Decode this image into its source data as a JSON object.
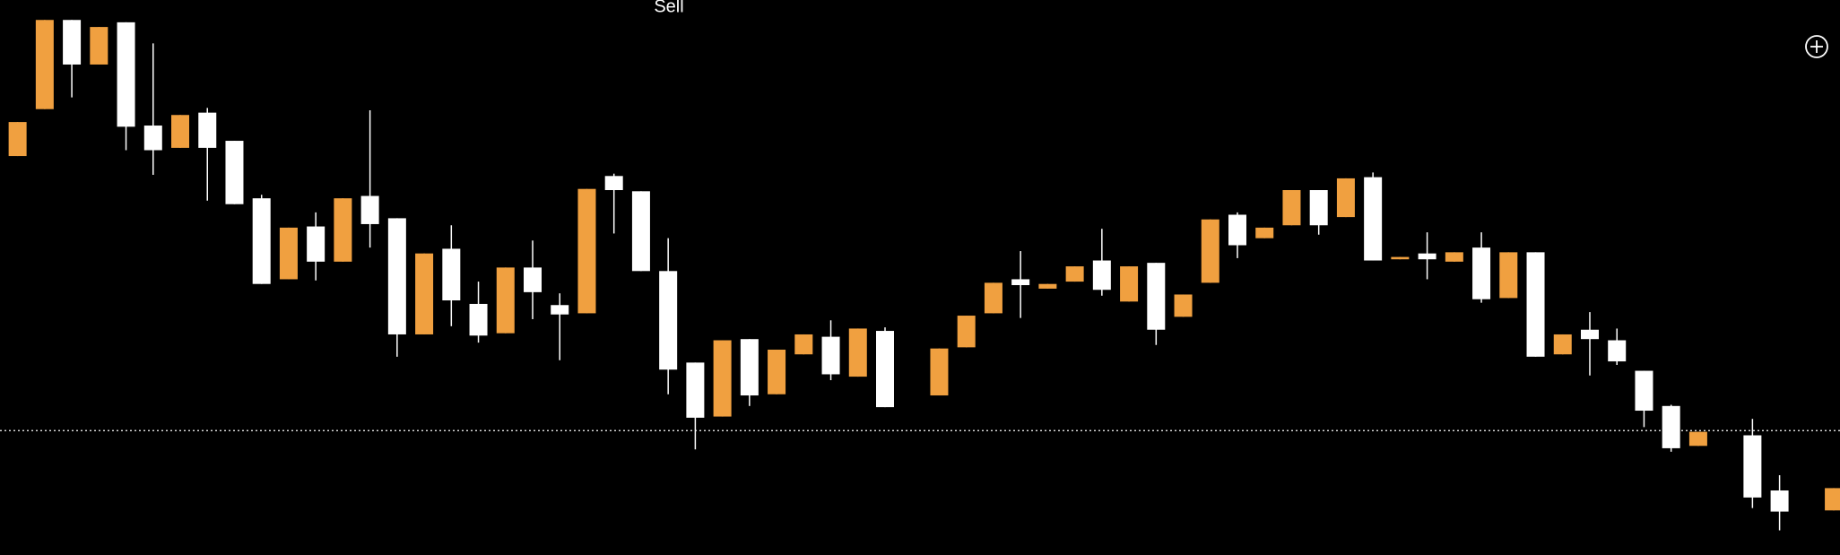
{
  "chart_data": {
    "type": "candlestick",
    "title": "Sell",
    "up_color": "#f0a040",
    "down_color": "#ffffff",
    "ylim": [
      0,
      473
    ],
    "price_line": 106,
    "open": [
      340,
      380,
      456,
      418,
      454,
      366,
      347,
      377,
      353,
      304,
      235,
      280,
      250,
      306,
      287,
      188,
      261,
      214,
      189,
      245,
      213,
      206,
      323,
      310,
      242,
      164,
      118,
      184,
      137,
      171,
      186,
      152,
      191,
      null,
      136,
      177,
      206,
      235,
      227,
      233,
      251,
      216,
      249,
      203,
      232,
      290,
      270,
      281,
      311,
      288,
      322,
      252,
      257,
      250,
      262,
      219,
      258,
      171,
      192,
      183,
      157,
      127,
      93,
      null,
      102,
      55,
      null,
      38
    ],
    "high": [
      369,
      456,
      456,
      450,
      454,
      436,
      375,
      381,
      353,
      307,
      279,
      292,
      304,
      379,
      287,
      257,
      281,
      233,
      245,
      268,
      223,
      312,
      325,
      310,
      270,
      164,
      183,
      184,
      175,
      188,
      200,
      193,
      194,
      null,
      176,
      204,
      232,
      259,
      231,
      246,
      278,
      246,
      249,
      222,
      286,
      292,
      279,
      311,
      311,
      321,
      326,
      254,
      275,
      258,
      275,
      258,
      258,
      188,
      207,
      193,
      157,
      128,
      105,
      null,
      116,
      68,
      null,
      57
    ],
    "low": [
      340,
      380,
      390,
      418,
      345,
      324,
      347,
      302,
      299,
      231,
      235,
      234,
      250,
      262,
      169,
      188,
      195,
      181,
      189,
      201,
      166,
      206,
      274,
      242,
      137,
      90,
      118,
      127,
      137,
      171,
      149,
      152,
      126,
      null,
      136,
      177,
      206,
      202,
      227,
      233,
      221,
      216,
      179,
      203,
      232,
      253,
      270,
      281,
      273,
      288,
      251,
      252,
      235,
      250,
      215,
      219,
      169,
      171,
      153,
      162,
      109,
      88,
      93,
      null,
      40,
      21,
      null,
      38
    ],
    "close": [
      369,
      456,
      418,
      450,
      365,
      345,
      375,
      347,
      299,
      231,
      279,
      250,
      304,
      282,
      188,
      257,
      217,
      187,
      245,
      224,
      205,
      312,
      311,
      242,
      158,
      117,
      183,
      136,
      175,
      188,
      154,
      193,
      126,
      null,
      176,
      204,
      232,
      230,
      231,
      246,
      226,
      246,
      192,
      222,
      286,
      264,
      279,
      311,
      281,
      321,
      251,
      254,
      252,
      258,
      218,
      258,
      169,
      188,
      184,
      165,
      123,
      91,
      105,
      null,
      49,
      37,
      null,
      57
    ]
  }
}
